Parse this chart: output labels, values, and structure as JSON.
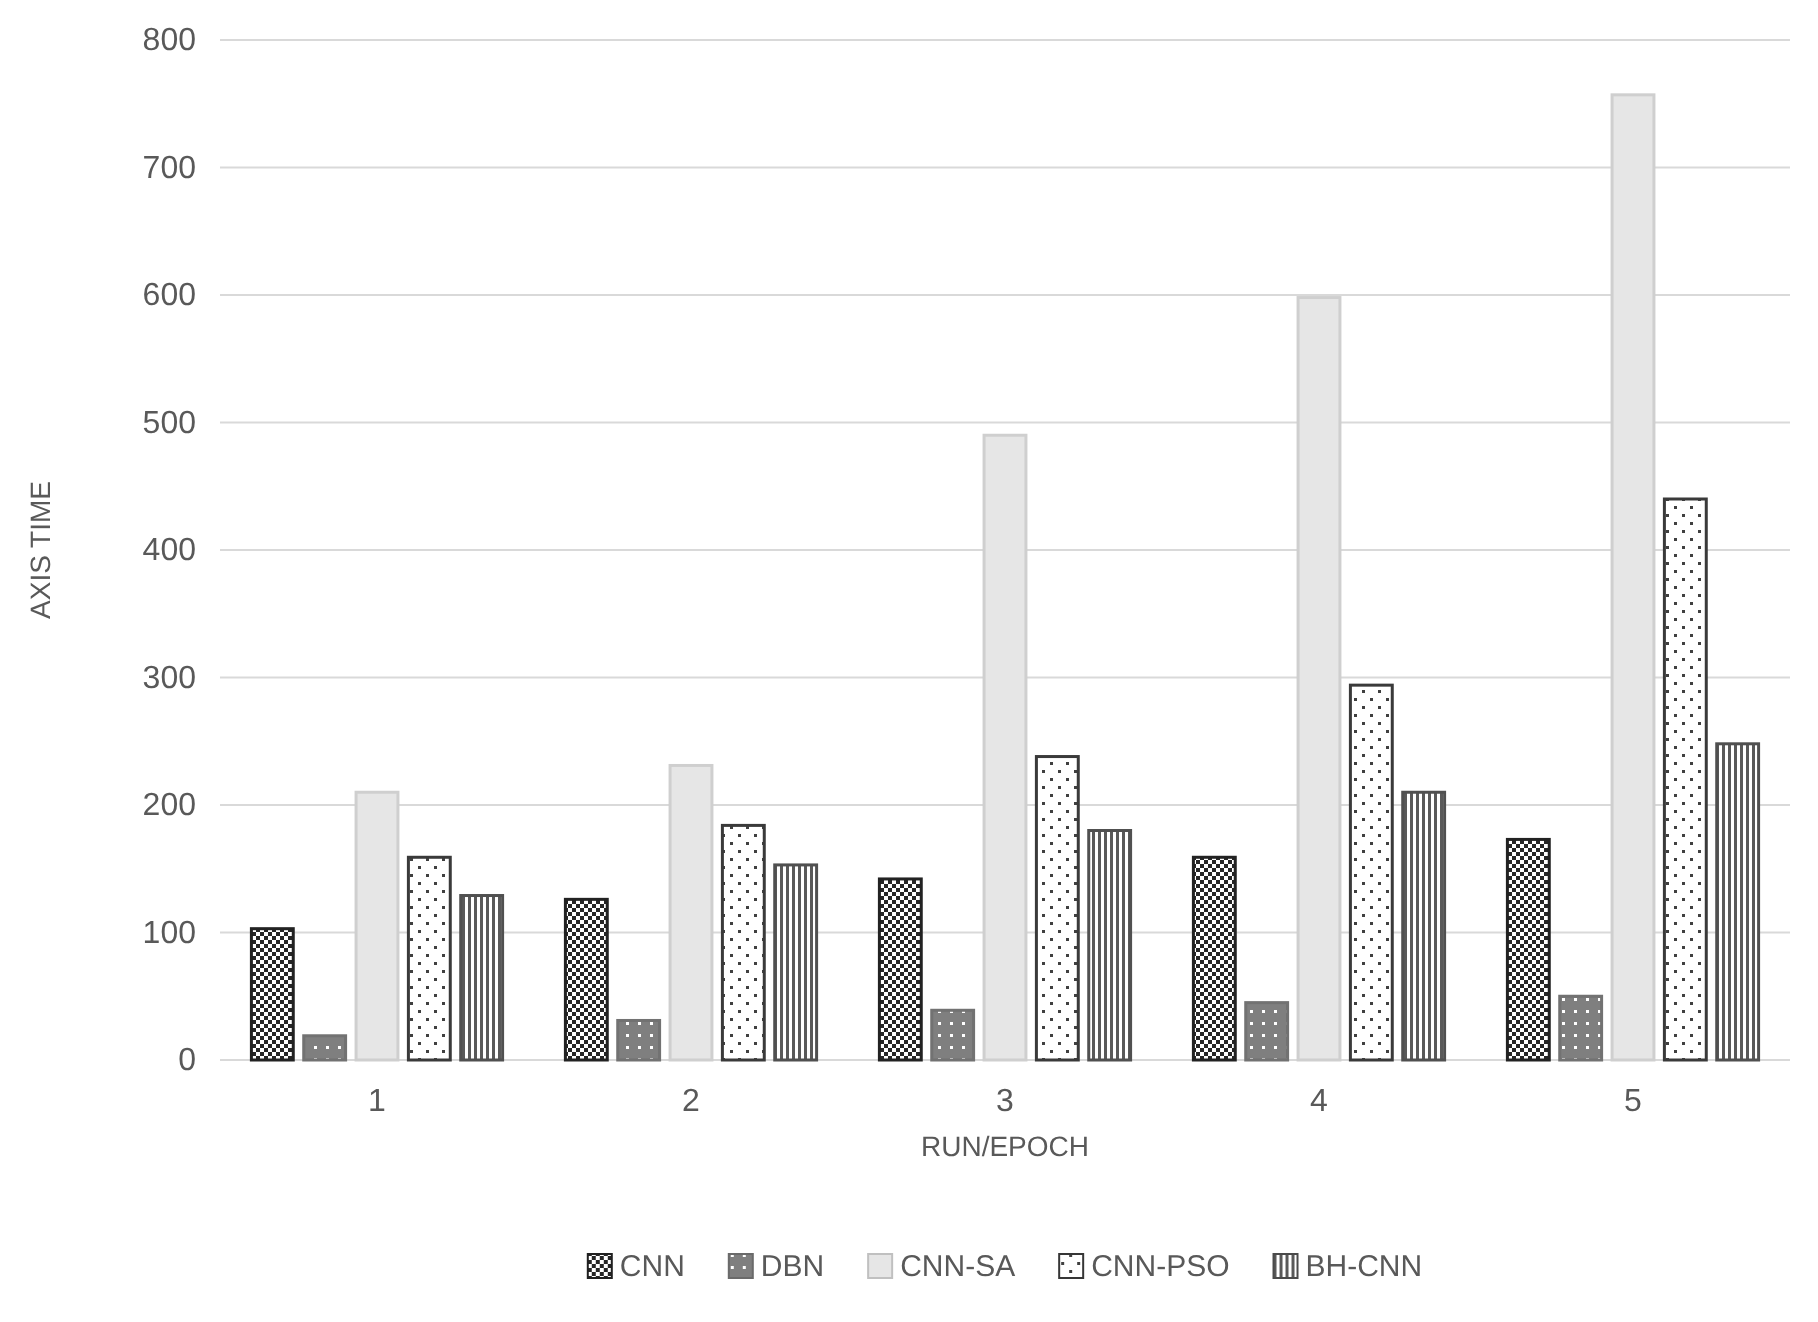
{
  "chart_data": {
    "type": "bar",
    "xlabel": "RUN/EPOCH",
    "ylabel": "AXIS TIME",
    "categories": [
      "1",
      "2",
      "3",
      "4",
      "5"
    ],
    "series": [
      {
        "name": "CNN",
        "color": "#262626",
        "values": [
          103,
          126,
          142,
          159,
          173
        ]
      },
      {
        "name": "DBN",
        "color": "#7f7f7f",
        "values": [
          19,
          31,
          39,
          45,
          50
        ]
      },
      {
        "name": "CNN-SA",
        "color": "#e6e6e6",
        "values": [
          210,
          231,
          490,
          598,
          757
        ]
      },
      {
        "name": "CNN-PSO",
        "color": "#404040",
        "values": [
          159,
          184,
          238,
          294,
          440
        ]
      },
      {
        "name": "BH-CNN",
        "color": "#595959",
        "values": [
          129,
          153,
          180,
          210,
          248
        ]
      }
    ],
    "ylim": [
      0,
      800
    ],
    "yticks": [
      0,
      100,
      200,
      300,
      400,
      500,
      600,
      700,
      800
    ],
    "grid": "y",
    "legend": "bottom"
  }
}
